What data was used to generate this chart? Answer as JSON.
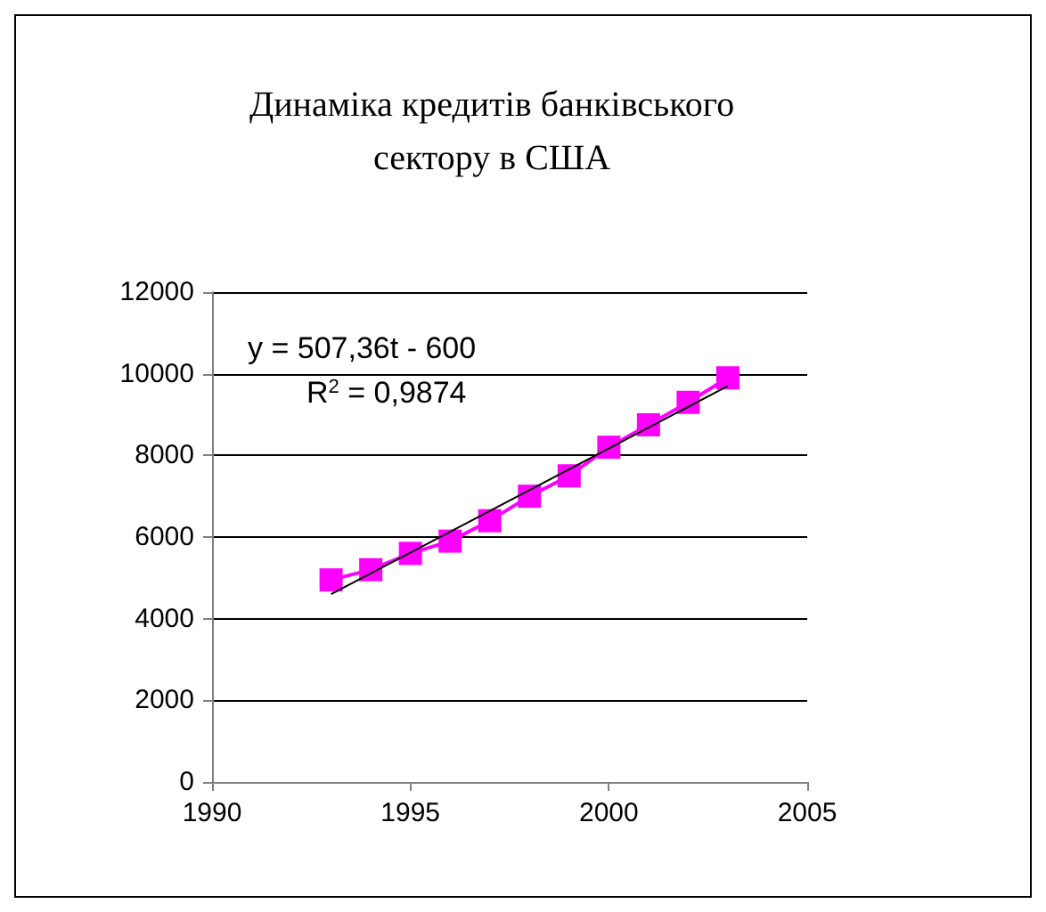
{
  "chart_data": {
    "type": "line",
    "title": "Динаміка кредитів банківського\nсектору в США",
    "x": [
      1993,
      1994,
      1995,
      1996,
      1997,
      1998,
      1999,
      2000,
      2001,
      2002,
      2003
    ],
    "series": [
      {
        "color": "#ff00ff",
        "marker": "square",
        "values": [
          4950,
          5200,
          5600,
          5900,
          6400,
          7000,
          7500,
          8200,
          8750,
          9300,
          9900
        ]
      },
      {
        "type": "line",
        "color": "#000000",
        "marker": "none",
        "x": [
          1993,
          2003
        ],
        "values": [
          4600,
          9700
        ]
      }
    ],
    "annotations": [
      "y = 507,36t - 600",
      "R$^{2}$ = 0,9874"
    ],
    "xlim": [
      1990,
      2005
    ],
    "xticks": [
      1990,
      1995,
      2000,
      2005
    ],
    "ylim": [
      0,
      12000
    ],
    "yticks": [
      0,
      2000,
      4000,
      6000,
      8000,
      10000,
      12000
    ],
    "grid": "y"
  }
}
